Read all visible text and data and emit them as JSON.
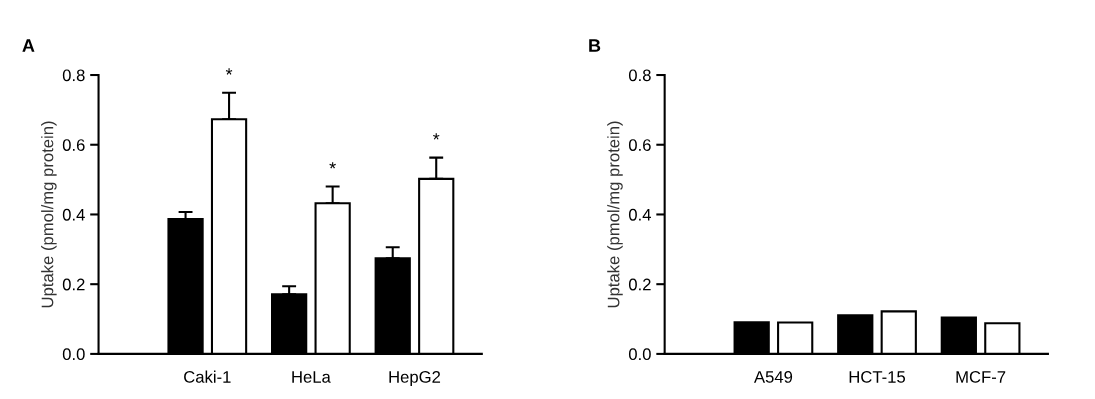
{
  "chart_data": [
    {
      "type": "bar",
      "title": "A",
      "ylabel": "Uptake (pmol/mg protein)",
      "categories": [
        "Caki-1",
        "HeLa",
        "HepG2"
      ],
      "series": [
        {
          "color": "#000000",
          "values": [
            0.387,
            0.171,
            0.274
          ],
          "errors": [
            0.02,
            0.023,
            0.032
          ]
        },
        {
          "color": "#ffffff",
          "values": [
            0.673,
            0.432,
            0.502
          ],
          "errors": [
            0.076,
            0.048,
            0.061
          ]
        }
      ],
      "ylim": [
        0,
        0.8
      ],
      "yticks": [
        {
          "value": 0,
          "label": "0.0"
        },
        {
          "value": 0.2,
          "label": "0.2"
        },
        {
          "value": 0.4,
          "label": "0.4"
        },
        {
          "value": 0.6,
          "label": "0.6"
        },
        {
          "value": 0.8,
          "label": "0.8"
        }
      ],
      "annotations": [
        "*",
        "*",
        "*"
      ],
      "grid": false,
      "legend": false
    },
    {
      "type": "bar",
      "title": "B",
      "ylabel": "Uptake (pmol/mg protein)",
      "categories": [
        "A549",
        "HCT-15",
        "MCF-7"
      ],
      "series": [
        {
          "color": "#000000",
          "values": [
            0.091,
            0.111,
            0.104
          ]
        },
        {
          "color": "#ffffff",
          "values": [
            0.09,
            0.122,
            0.088
          ]
        }
      ],
      "ylim": [
        0,
        0.8
      ],
      "yticks": [
        {
          "value": 0,
          "label": "0.0"
        },
        {
          "value": 0.2,
          "label": "0.2"
        },
        {
          "value": 0.4,
          "label": "0.4"
        },
        {
          "value": 0.6,
          "label": "0.6"
        },
        {
          "value": 0.8,
          "label": "0.8"
        }
      ],
      "grid": false,
      "legend": false
    }
  ]
}
